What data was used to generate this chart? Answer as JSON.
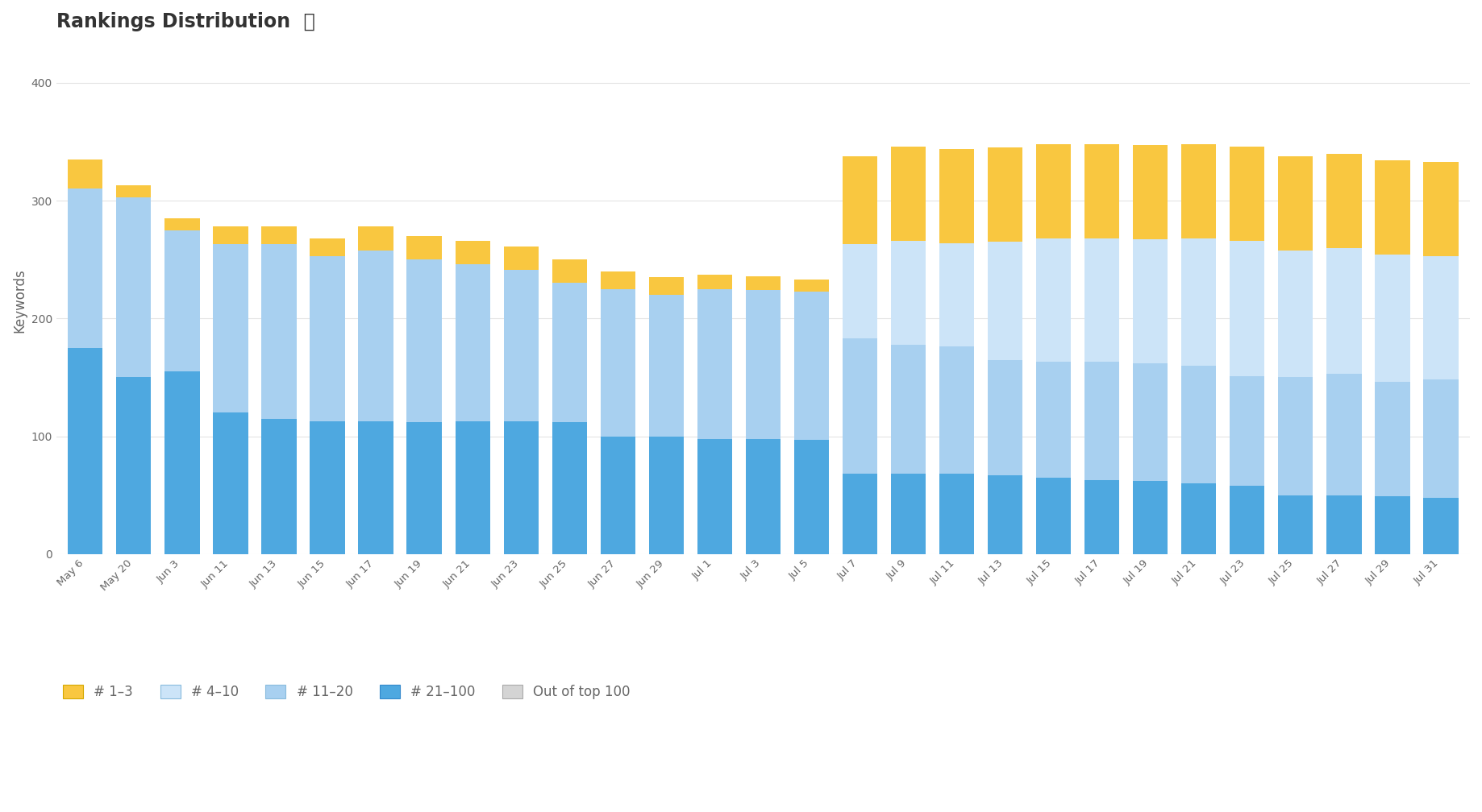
{
  "title": "Rankings Distribution",
  "info_icon": "ⓘ",
  "ylabel": "Keywords",
  "colors": {
    "rank_21_100": "#4ea8e0",
    "rank_11_20": "#a8d0f0",
    "rank_4_10": "#cce4f8",
    "rank_1_3": "#f9c740"
  },
  "legend_labels": [
    "# 1–3",
    "# 4–10",
    "# 11–20",
    "# 21–100",
    "Out of top 100"
  ],
  "legend_colors": [
    "#f9c740",
    "#cce4f8",
    "#a8d0f0",
    "#4ea8e0",
    "#d4d4d4"
  ],
  "x_labels": [
    "May 6",
    "May 20",
    "Jun 3",
    "Jun 11",
    "Jun 13",
    "Jun 15",
    "Jun 17",
    "Jun 19",
    "Jun 21",
    "Jun 23",
    "Jun 25",
    "Jun 27",
    "Jun 29",
    "Jul 1",
    "Jul 3",
    "Jul 5",
    "Jul 7",
    "Jul 9",
    "Jul 11",
    "Jul 13",
    "Jul 15",
    "Jul 17",
    "Jul 19",
    "Jul 21",
    "Jul 23",
    "Jul 25",
    "Jul 27",
    "Jul 29",
    "Jul 31"
  ],
  "rank_21_100": [
    175,
    150,
    155,
    120,
    115,
    113,
    113,
    112,
    113,
    113,
    112,
    100,
    100,
    98,
    98,
    97,
    68,
    68,
    68,
    67,
    65,
    63,
    62,
    60,
    58,
    50,
    50,
    49,
    48
  ],
  "rank_11_20": [
    135,
    153,
    120,
    143,
    148,
    140,
    145,
    138,
    133,
    128,
    118,
    125,
    120,
    127,
    126,
    126,
    115,
    110,
    108,
    98,
    98,
    100,
    100,
    100,
    93,
    100,
    103,
    97,
    100
  ],
  "rank_4_10": [
    0,
    0,
    0,
    0,
    0,
    0,
    0,
    0,
    0,
    0,
    0,
    0,
    0,
    0,
    0,
    0,
    80,
    88,
    88,
    100,
    105,
    105,
    105,
    108,
    115,
    108,
    107,
    108,
    105
  ],
  "rank_1_3": [
    25,
    10,
    10,
    15,
    15,
    15,
    20,
    20,
    20,
    20,
    20,
    15,
    15,
    12,
    12,
    10,
    75,
    80,
    80,
    80,
    80,
    80,
    80,
    80,
    80,
    80,
    80,
    80,
    80
  ],
  "ylim": [
    0,
    430
  ],
  "yticks": [
    0,
    100,
    200,
    300,
    400
  ],
  "bar_width": 0.72,
  "title_fontsize": 17,
  "axis_label_fontsize": 12,
  "tick_fontsize": 10,
  "legend_fontsize": 12,
  "grid_color": "#e5e5e5",
  "text_color": "#666666",
  "title_color": "#333333",
  "bg_color": "#ffffff",
  "fig_bg_color": "#ffffff"
}
